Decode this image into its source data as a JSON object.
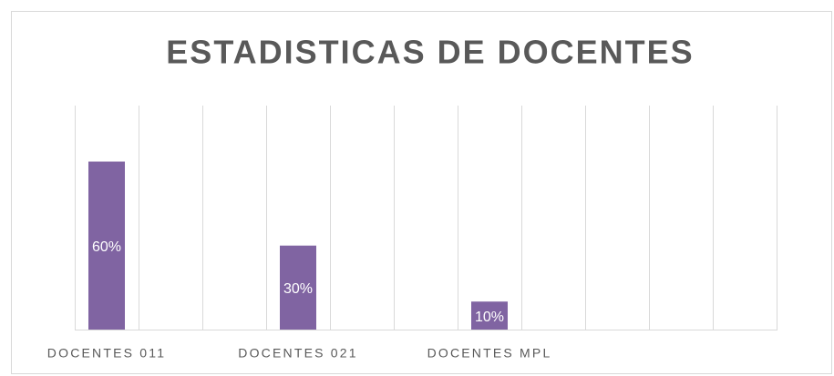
{
  "chart_data": {
    "type": "bar",
    "title": "ESTADISTICAS DE DOCENTES",
    "categories": [
      "DOCENTES 011",
      "DOCENTES 021",
      "DOCENTES MPL"
    ],
    "values": [
      60,
      30,
      10
    ],
    "value_labels": [
      "60%",
      "30%",
      "10%"
    ],
    "color": "#8064a2",
    "ylim": [
      0,
      80
    ]
  }
}
